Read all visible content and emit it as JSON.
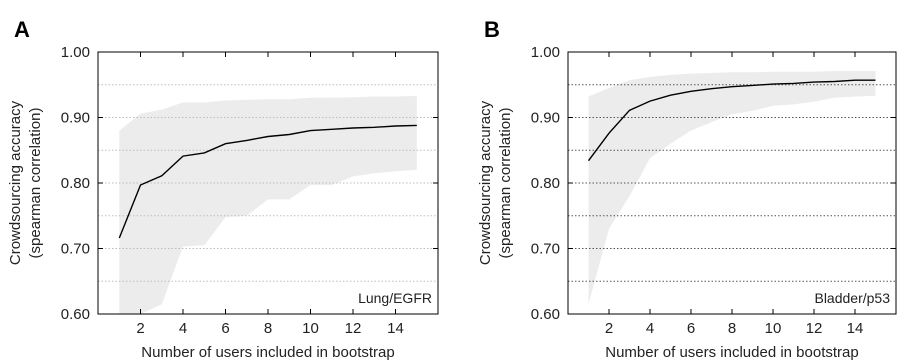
{
  "chart_data": [
    {
      "panel_label": "A",
      "type": "line",
      "xlabel": "Number of users included in bootstrap",
      "ylabel_lines": [
        "Crowdsourcing accuracy",
        "(spearman correlation)"
      ],
      "annotation": "Lung/EGFR",
      "xlim": [
        0,
        16
      ],
      "ylim": [
        0.6,
        1.0
      ],
      "xticks": [
        2,
        4,
        6,
        8,
        10,
        12,
        14
      ],
      "xtick_labels": [
        "2",
        "4",
        "6",
        "8",
        "10",
        "12",
        "14"
      ],
      "yticks": [
        0.6,
        0.7,
        0.8,
        0.9,
        1.0
      ],
      "ytick_labels": [
        "0.60",
        "0.70",
        "0.80",
        "0.90",
        "1.00"
      ],
      "grid": true,
      "x": [
        1,
        2,
        3,
        4,
        5,
        6,
        7,
        8,
        9,
        10,
        11,
        12,
        13,
        14,
        15
      ],
      "series": [
        {
          "values": [
            0.716,
            0.797,
            0.811,
            0.841,
            0.846,
            0.86,
            0.865,
            0.871,
            0.874,
            0.88,
            0.882,
            0.884,
            0.885,
            0.887,
            0.888
          ]
        }
      ],
      "band_upper": [
        0.88,
        0.906,
        0.912,
        0.923,
        0.923,
        0.926,
        0.927,
        0.928,
        0.928,
        0.93,
        0.93,
        0.931,
        0.932,
        0.932,
        0.933
      ],
      "band_lower": [
        0.6,
        0.6,
        0.615,
        0.703,
        0.705,
        0.748,
        0.75,
        0.775,
        0.775,
        0.797,
        0.797,
        0.81,
        0.815,
        0.818,
        0.82
      ]
    },
    {
      "panel_label": "B",
      "type": "line",
      "xlabel": "Number of users included in bootstrap",
      "ylabel_lines": [
        "Crowdsourcing accuracy",
        "(spearman correlation)"
      ],
      "annotation": "Bladder/p53",
      "xlim": [
        0,
        16
      ],
      "ylim": [
        0.6,
        1.0
      ],
      "xticks": [
        2,
        4,
        6,
        8,
        10,
        12,
        14
      ],
      "xtick_labels": [
        "2",
        "4",
        "6",
        "8",
        "10",
        "12",
        "14"
      ],
      "yticks": [
        0.6,
        0.7,
        0.8,
        0.9,
        1.0
      ],
      "ytick_labels": [
        "0.60",
        "0.70",
        "0.80",
        "0.90",
        "1.00"
      ],
      "grid": true,
      "x": [
        1,
        2,
        3,
        4,
        5,
        6,
        7,
        8,
        9,
        10,
        11,
        12,
        13,
        14,
        15
      ],
      "series": [
        {
          "values": [
            0.834,
            0.876,
            0.911,
            0.925,
            0.934,
            0.94,
            0.944,
            0.947,
            0.949,
            0.951,
            0.952,
            0.954,
            0.955,
            0.957,
            0.957
          ]
        }
      ],
      "band_upper": [
        0.932,
        0.945,
        0.957,
        0.962,
        0.965,
        0.967,
        0.968,
        0.969,
        0.969,
        0.97,
        0.97,
        0.97,
        0.971,
        0.971,
        0.971
      ],
      "band_lower": [
        0.615,
        0.73,
        0.78,
        0.838,
        0.86,
        0.88,
        0.893,
        0.905,
        0.91,
        0.918,
        0.92,
        0.924,
        0.93,
        0.932,
        0.933
      ]
    }
  ]
}
